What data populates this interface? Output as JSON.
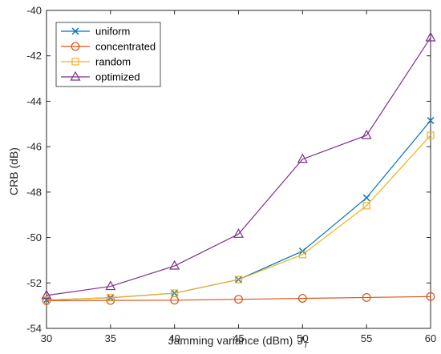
{
  "chart_data": {
    "type": "line",
    "title": "",
    "xlabel": "Jamming variance (dBm)",
    "xlabel_symbol": "J",
    "xlabel_subscript": "T",
    "ylabel": "CRB (dB)",
    "xlim": [
      30,
      60
    ],
    "ylim": [
      -54,
      -40
    ],
    "x_ticks": [
      30,
      35,
      40,
      45,
      50,
      55,
      60
    ],
    "y_ticks": [
      -54,
      -52,
      -50,
      -48,
      -46,
      -44,
      -42,
      -40
    ],
    "x": [
      30,
      35,
      40,
      45,
      50,
      55,
      60
    ],
    "grid": false,
    "legend_position": "top-left",
    "series": [
      {
        "name": "uniform",
        "marker": "x",
        "color": "#0072BD",
        "values": [
          -52.75,
          -52.65,
          -52.45,
          -51.85,
          -50.6,
          -48.25,
          -44.85
        ]
      },
      {
        "name": "concentrated",
        "marker": "circle",
        "color": "#D95319",
        "values": [
          -52.78,
          -52.77,
          -52.76,
          -52.72,
          -52.68,
          -52.64,
          -52.6
        ]
      },
      {
        "name": "random",
        "marker": "square",
        "color": "#EDB120",
        "values": [
          -52.75,
          -52.65,
          -52.45,
          -51.85,
          -50.75,
          -48.6,
          -45.5
        ]
      },
      {
        "name": "optimized",
        "marker": "triangle",
        "color": "#7E2F8E",
        "values": [
          -52.55,
          -52.15,
          -51.25,
          -49.85,
          -46.55,
          -45.5,
          -41.2
        ]
      }
    ]
  }
}
